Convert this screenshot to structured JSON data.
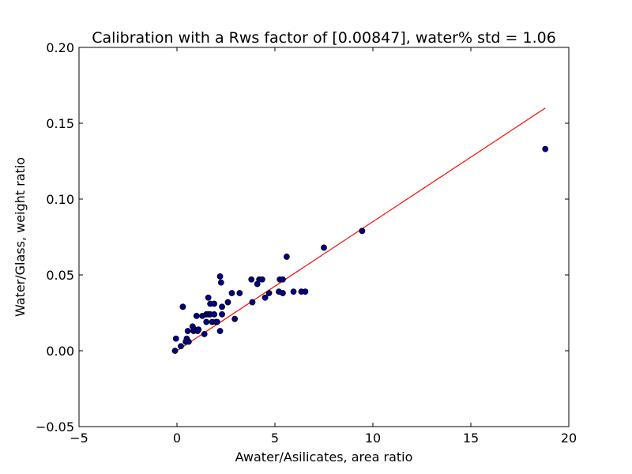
{
  "chart_data": {
    "type": "scatter",
    "title": "Calibration with a Rws factor of [0.00847], water% std = 1.06",
    "xlabel": "Awater/Asilicates, area ratio",
    "ylabel": "Water/Glass, weight ratio",
    "xlim": [
      -5,
      20
    ],
    "ylim": [
      -0.05,
      0.2
    ],
    "xticks": [
      -5,
      0,
      5,
      10,
      15,
      20
    ],
    "xtick_labels": [
      "−5",
      "0",
      "5",
      "10",
      "15",
      "20"
    ],
    "yticks": [
      -0.05,
      0.0,
      0.05,
      0.1,
      0.15,
      0.2
    ],
    "ytick_labels": [
      "−0.05",
      "0.00",
      "0.05",
      "0.10",
      "0.15",
      "0.20"
    ],
    "grid": false,
    "series": [
      {
        "kind": "scatter",
        "color": "#00008b",
        "x": [
          -0.1,
          -0.05,
          0.2,
          0.3,
          0.45,
          0.5,
          0.55,
          0.6,
          0.8,
          0.85,
          0.9,
          1.0,
          1.05,
          1.1,
          1.3,
          1.4,
          1.5,
          1.5,
          1.6,
          1.6,
          1.7,
          1.7,
          1.8,
          1.9,
          1.9,
          2.0,
          2.05,
          2.2,
          2.2,
          2.25,
          2.3,
          2.3,
          2.6,
          2.8,
          2.95,
          3.2,
          3.8,
          3.85,
          4.1,
          4.2,
          4.35,
          4.5,
          4.7,
          5.2,
          5.25,
          5.4,
          5.4,
          5.6,
          5.95,
          6.35,
          6.55,
          7.5,
          9.45,
          18.8
        ],
        "y": [
          0.0,
          0.008,
          0.003,
          0.029,
          0.006,
          0.008,
          0.013,
          0.006,
          0.016,
          0.013,
          0.014,
          0.023,
          0.013,
          0.014,
          0.023,
          0.011,
          0.024,
          0.019,
          0.035,
          0.024,
          0.024,
          0.031,
          0.019,
          0.031,
          0.024,
          0.019,
          0.019,
          0.049,
          0.013,
          0.045,
          0.024,
          0.029,
          0.032,
          0.038,
          0.021,
          0.038,
          0.047,
          0.032,
          0.044,
          0.047,
          0.047,
          0.035,
          0.038,
          0.039,
          0.047,
          0.047,
          0.038,
          0.062,
          0.039,
          0.039,
          0.039,
          0.068,
          0.079,
          0.133
        ]
      },
      {
        "kind": "line",
        "color": "#ff0000",
        "x": [
          0.0,
          18.8
        ],
        "y": [
          0.0,
          0.16
        ]
      }
    ]
  }
}
